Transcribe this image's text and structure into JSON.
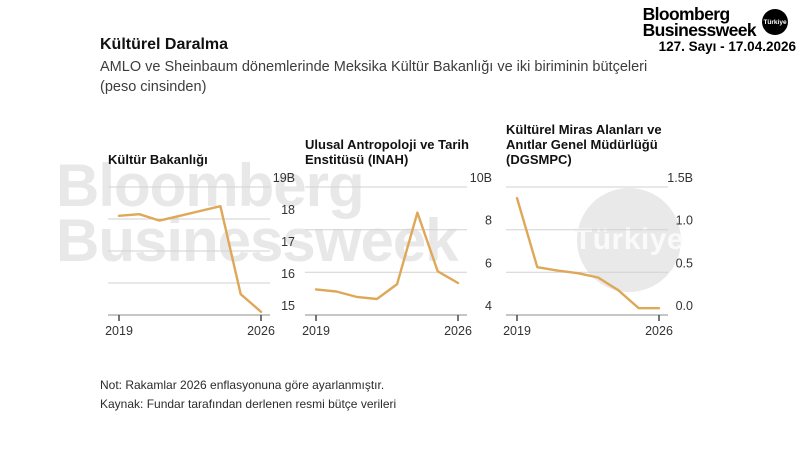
{
  "masthead": {
    "logo_line1": "Bloomberg",
    "logo_line2": "Businessweek",
    "badge": "Türkiye",
    "issue": "127. Sayı - 17.04.2026"
  },
  "header": {
    "title": "Kültürel Daralma",
    "subtitle": "AMLO ve Sheinbaum dönemlerinde Meksika Kültür Bakanlığı ve iki biriminin bütçeleri (peso cinsinden)"
  },
  "watermarks": {
    "text_line1": "Bloomberg",
    "text_line2": "Businessweek",
    "circle_text": "Türkiye"
  },
  "notes": {
    "note": "Not: Rakamlar 2026 enflasyonuna göre ayarlanmıştır.",
    "source": "Kaynak: Fundar tarafından derlenen resmi bütçe verileri"
  },
  "colors": {
    "line": "#DEA858",
    "grid": "#d2d2d2",
    "axis": "#a3a3a3",
    "tick": "#3c3c3c",
    "axis_text": "#333333",
    "watermark": "#e8e8e8"
  },
  "chart_data": [
    {
      "type": "line",
      "title": "Kültür Bakanlığı",
      "title_lines": [
        "Kültür Bakanlığı"
      ],
      "x": [
        2019,
        2020,
        2021,
        2022,
        2023,
        2024,
        2025,
        2026
      ],
      "values": [
        18.1,
        18.15,
        17.95,
        18.1,
        18.25,
        18.4,
        15.65,
        15.1
      ],
      "ytick_labels": [
        "19B",
        "18",
        "17",
        "16",
        "15"
      ],
      "ytick_values": [
        19,
        18,
        17,
        16,
        15
      ],
      "ylim": [
        15,
        19
      ],
      "xtick_labels": [
        "2019",
        "2026"
      ],
      "grid": true,
      "legend": "none"
    },
    {
      "type": "line",
      "title": "Ulusal Antropoloji ve Tarih Enstitüsü (INAH)",
      "title_lines": [
        "Ulusal Antropoloji ve Tarih",
        "Enstitüsü (INAH)"
      ],
      "x": [
        2019,
        2020,
        2021,
        2022,
        2023,
        2024,
        2025,
        2026
      ],
      "values": [
        5.2,
        5.1,
        4.85,
        4.75,
        5.45,
        8.8,
        6.05,
        5.5
      ],
      "ytick_labels": [
        "10B",
        "8",
        "6",
        "4"
      ],
      "ytick_values": [
        10,
        8,
        6,
        4
      ],
      "ylim": [
        4,
        10
      ],
      "xtick_labels": [
        "2019",
        "2026"
      ],
      "grid": true,
      "legend": "none"
    },
    {
      "type": "line",
      "title": "Kültürel Miras Alanları ve Anıtlar Genel Müdürlüğü (DGSMPC)",
      "title_lines": [
        "Kültürel Miras Alanları ve",
        "Anıtlar Genel Müdürlüğü",
        "(DGSMPC)"
      ],
      "x": [
        2019,
        2020,
        2021,
        2022,
        2023,
        2024,
        2025,
        2026
      ],
      "values": [
        1.37,
        0.56,
        0.52,
        0.49,
        0.44,
        0.29,
        0.08,
        0.08
      ],
      "ytick_labels": [
        "1.5B",
        "1.0",
        "0.5",
        "0.0"
      ],
      "ytick_values": [
        1.5,
        1.0,
        0.5,
        0.0
      ],
      "ylim": [
        0.0,
        1.5
      ],
      "xtick_labels": [
        "2019",
        "2026"
      ],
      "grid": true,
      "legend": "none"
    }
  ]
}
